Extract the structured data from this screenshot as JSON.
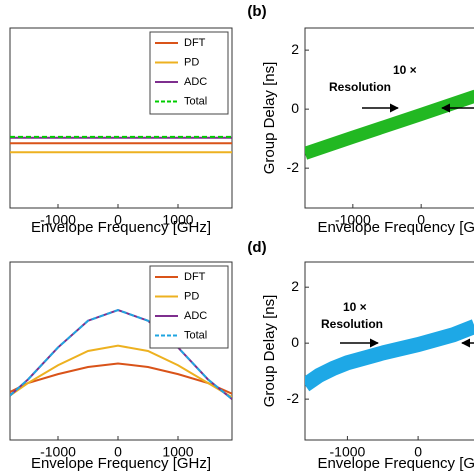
{
  "chart_data": [
    {
      "type": "line",
      "xlabel": "Envelope Frequency [GHz]",
      "x": [
        -1800,
        1900
      ],
      "xlim": [
        -1800,
        1900
      ],
      "xticks": [
        -1000,
        0,
        1000
      ],
      "ylim": [
        0,
        1
      ],
      "legend": "upper right",
      "series": [
        {
          "name": "DFT",
          "color": "#d95319",
          "values": [
            0.36,
            0.36
          ]
        },
        {
          "name": "PD",
          "color": "#edb120",
          "values": [
            0.31,
            0.31
          ]
        },
        {
          "name": "ADC",
          "color": "#7e2f8e",
          "values": [
            0.39,
            0.39
          ]
        },
        {
          "name": "Total",
          "color": "#00cc00",
          "dashed": true,
          "values": [
            0.395,
            0.395
          ]
        }
      ]
    },
    {
      "type": "band",
      "label": "(b)",
      "xlabel": "Envelope Frequency [GHz]",
      "ylabel": "Group Delay [ns]",
      "x": [
        -1700,
        -1000,
        0,
        800
      ],
      "xlim": [
        -1700,
        1300
      ],
      "xticks": [
        -1000,
        0,
        1000
      ],
      "ylim": [
        -3.35,
        2.75
      ],
      "yticks": [
        -2,
        0,
        2
      ],
      "annotation": [
        "10 ×",
        "Resolution"
      ],
      "series": [
        {
          "color": "#22b822",
          "values": [
            -1.5,
            -0.95,
            -0.18,
            0.45
          ]
        }
      ]
    },
    {
      "type": "line",
      "xlabel": "Envelope Frequency [GHz]",
      "x": [
        -1800,
        -1500,
        -1000,
        -500,
        0,
        500,
        1000,
        1500,
        1900
      ],
      "xlim": [
        -1800,
        1900
      ],
      "xticks": [
        -1000,
        0,
        1000
      ],
      "ylim": [
        0,
        1
      ],
      "legend": "upper right",
      "series": [
        {
          "name": "DFT",
          "color": "#d95319",
          "values": [
            0.27,
            0.32,
            0.37,
            0.41,
            0.43,
            0.41,
            0.37,
            0.32,
            0.26
          ]
        },
        {
          "name": "PD",
          "color": "#edb120",
          "values": [
            0.25,
            0.32,
            0.42,
            0.5,
            0.53,
            0.5,
            0.42,
            0.32,
            0.24
          ]
        },
        {
          "name": "ADC",
          "color": "#7e2f8e",
          "values": [
            0.25,
            0.34,
            0.52,
            0.67,
            0.73,
            0.67,
            0.52,
            0.34,
            0.23
          ]
        },
        {
          "name": "Total",
          "color": "#1fa5e0",
          "dashed": true,
          "values": [
            0.25,
            0.34,
            0.52,
            0.67,
            0.73,
            0.67,
            0.52,
            0.34,
            0.23
          ]
        }
      ]
    },
    {
      "type": "band",
      "label": "(d)",
      "xlabel": "Envelope Frequency [GHz]",
      "ylabel": "Group Delay [ns]",
      "x": [
        -1600,
        -1400,
        -1200,
        -1000,
        -500,
        0,
        500,
        800
      ],
      "xlim": [
        -1600,
        1300
      ],
      "xticks": [
        -1000,
        0,
        1000
      ],
      "ylim": [
        -3.46,
        2.9
      ],
      "yticks": [
        -2,
        0,
        2
      ],
      "annotation": [
        "10 ×",
        "Resolution"
      ],
      "series": [
        {
          "color": "#1ea8e6",
          "values": [
            -1.5,
            -1.15,
            -0.9,
            -0.7,
            -0.35,
            -0.05,
            0.3,
            0.6
          ]
        }
      ]
    }
  ]
}
